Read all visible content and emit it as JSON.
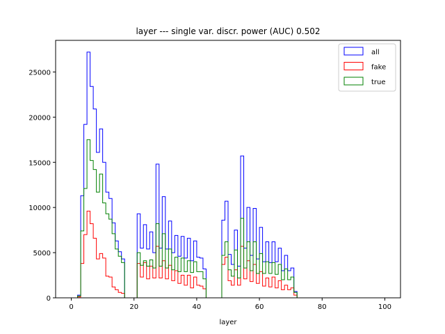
{
  "chart_data": {
    "type": "histogram-step",
    "title": "layer --- single var. discr. power (AUC) 0.502",
    "xlabel": "layer",
    "ylabel": "",
    "xlim": [
      -5,
      105
    ],
    "ylim": [
      0,
      28500
    ],
    "xticks": [
      0,
      20,
      40,
      60,
      80,
      100
    ],
    "yticks": [
      0,
      5000,
      10000,
      15000,
      20000,
      25000
    ],
    "legend_position": "top-right",
    "bin_start": 0,
    "bin_width": 1,
    "series": [
      {
        "name": "all",
        "color": "#0000ff",
        "values": [
          0,
          0,
          300,
          11300,
          19200,
          27200,
          23400,
          20900,
          16100,
          18700,
          15000,
          11700,
          11000,
          8300,
          6300,
          5100,
          4300,
          0,
          0,
          0,
          0,
          9300,
          5500,
          8100,
          5400,
          7300,
          5000,
          14800,
          5500,
          11200,
          5400,
          8500,
          5000,
          6900,
          4600,
          6800,
          4400,
          6600,
          4100,
          6300,
          4500,
          4400,
          3200,
          0,
          0,
          0,
          0,
          0,
          8600,
          10700,
          4800,
          3700,
          7500,
          3500,
          15700,
          5500,
          10000,
          4700,
          9900,
          4300,
          7800,
          4000,
          6200,
          3900,
          6200,
          4000,
          5500,
          3000,
          4700,
          3000,
          3300,
          700,
          0,
          0,
          0,
          0,
          0,
          0,
          0,
          0,
          0,
          0,
          0,
          0,
          0,
          0,
          0,
          0,
          0,
          0,
          0,
          0,
          0,
          0,
          0,
          0,
          0,
          0,
          0,
          0
        ]
      },
      {
        "name": "fake",
        "color": "#ff0000",
        "values": [
          0,
          0,
          100,
          3800,
          7000,
          9600,
          8200,
          6600,
          4300,
          4900,
          4400,
          2400,
          2300,
          1200,
          900,
          600,
          500,
          0,
          0,
          0,
          0,
          3800,
          2300,
          3900,
          2100,
          3500,
          2200,
          5700,
          2200,
          4100,
          2100,
          3600,
          1900,
          3000,
          1600,
          2500,
          1400,
          2500,
          1100,
          2300,
          1400,
          1300,
          1000,
          0,
          0,
          0,
          0,
          0,
          3700,
          4500,
          1900,
          1400,
          3100,
          1400,
          5700,
          2100,
          4100,
          1800,
          3700,
          1600,
          2900,
          1300,
          2200,
          1200,
          2300,
          1100,
          1900,
          900,
          1400,
          900,
          1100,
          300,
          0,
          0,
          0,
          0,
          0,
          0,
          0,
          0,
          0,
          0,
          0,
          0,
          0,
          0,
          0,
          0,
          0,
          0,
          0,
          0,
          0,
          0,
          0,
          0,
          0,
          0,
          0,
          0
        ]
      },
      {
        "name": "true",
        "color": "#008000",
        "values": [
          0,
          0,
          200,
          7400,
          12100,
          17500,
          15200,
          14200,
          11700,
          13700,
          10500,
          9300,
          8700,
          7100,
          5400,
          4600,
          3900,
          0,
          0,
          0,
          0,
          5000,
          3600,
          4100,
          3500,
          4200,
          3300,
          8200,
          3500,
          7100,
          3300,
          5400,
          3100,
          4500,
          2900,
          4400,
          2900,
          4100,
          2800,
          4000,
          2900,
          2900,
          2100,
          0,
          0,
          0,
          0,
          0,
          4700,
          6200,
          3100,
          2400,
          5300,
          2200,
          8800,
          3300,
          6200,
          3000,
          6200,
          2700,
          4900,
          2700,
          4000,
          2700,
          3900,
          2600,
          3700,
          2000,
          3200,
          2000,
          2300,
          600,
          0,
          0,
          0,
          0,
          0,
          0,
          0,
          0,
          0,
          0,
          0,
          0,
          0,
          0,
          0,
          0,
          0,
          0,
          0,
          0,
          0,
          0,
          0,
          0,
          0,
          0,
          0,
          0
        ]
      }
    ]
  }
}
